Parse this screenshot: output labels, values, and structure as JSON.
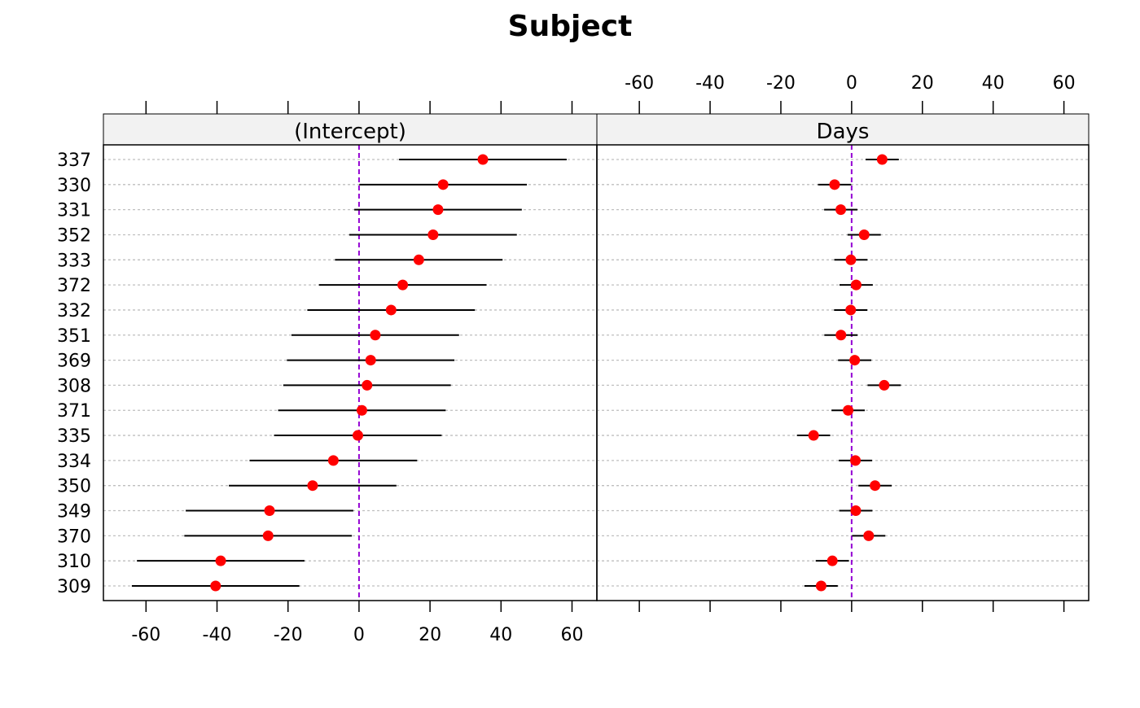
{
  "chart_data": {
    "type": "dotplot",
    "title": "Subject",
    "xlim": [
      -72,
      67
    ],
    "ticks": [
      -60,
      -40,
      -20,
      0,
      20,
      40,
      60
    ],
    "tick_labels": [
      "-60",
      "-40",
      "-20",
      "0",
      "20",
      "40",
      "60"
    ],
    "reference_line": 0,
    "colors": {
      "point": "#ff0000",
      "interval": "#000000",
      "reference": "#9400d3",
      "grid": "#bfbfbf",
      "strip": "#f2f2f2"
    },
    "subjects": [
      "337",
      "330",
      "331",
      "352",
      "333",
      "372",
      "332",
      "351",
      "369",
      "308",
      "371",
      "335",
      "334",
      "350",
      "349",
      "370",
      "310",
      "309"
    ],
    "panels": [
      {
        "name": "(Intercept)",
        "values": [
          34.89,
          23.69,
          22.26,
          20.86,
          16.84,
          12.31,
          9.04,
          4.58,
          3.28,
          2.26,
          0.81,
          -0.33,
          -7.23,
          -13.07,
          -25.21,
          -25.61,
          -38.96,
          -40.4
        ],
        "half_width": 23.6
      },
      {
        "name": "Days",
        "values": [
          8.63,
          -4.81,
          -3.07,
          3.54,
          -0.22,
          1.28,
          -0.27,
          -3.02,
          0.87,
          9.2,
          -0.99,
          -10.75,
          1.07,
          6.61,
          1.17,
          4.82,
          -5.45,
          -8.62
        ],
        "half_width": 4.7
      }
    ]
  }
}
